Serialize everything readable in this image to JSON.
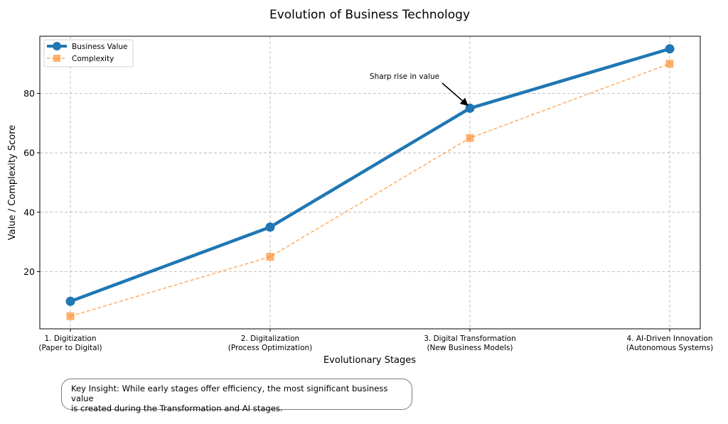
{
  "chart_data": {
    "type": "line",
    "title": "Evolution of Business Technology",
    "xlabel": "Evolutionary Stages",
    "ylabel": "Value / Complexity Score",
    "categories": [
      [
        "1. Digitization",
        "(Paper to Digital)"
      ],
      [
        "2. Digitalization",
        "(Process Optimization)"
      ],
      [
        "3. Digital Transformation",
        "(New Business Models)"
      ],
      [
        "4. AI-Driven Innovation",
        "(Autonomous Systems)"
      ]
    ],
    "ylim": [
      0.75,
      99.25
    ],
    "yticks": [
      20,
      40,
      60,
      80
    ],
    "grid": true,
    "legend_position": "top-left",
    "series": [
      {
        "name": "Business Value",
        "values": [
          10,
          35,
          75,
          95
        ],
        "color": "#1f77b4",
        "marker": "circle",
        "line_style": "solid"
      },
      {
        "name": "Complexity",
        "values": [
          5,
          25,
          65,
          90
        ],
        "color": "#ff7f0e",
        "marker": "square",
        "line_style": "dashed"
      }
    ],
    "annotations": [
      {
        "text": "Sharp rise in value",
        "target_category_index": 2,
        "target_value": 75
      }
    ]
  },
  "insight": {
    "line1": "Key Insight: While early stages offer efficiency, the most significant business value",
    "line2": "is created during the Transformation and AI stages."
  }
}
